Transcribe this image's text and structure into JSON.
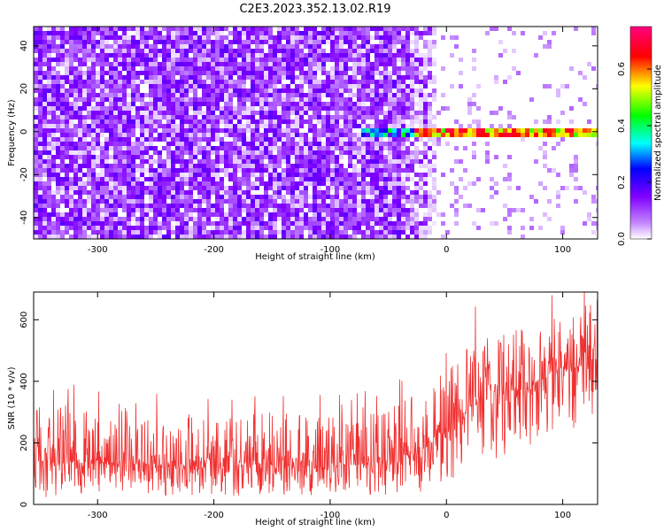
{
  "title": "C2E3.2023.352.13.02.R19",
  "chart_data": [
    {
      "type": "heatmap",
      "title": "C2E3.2023.352.13.02.R19",
      "xlabel": "Height of straight line (km)",
      "ylabel": "Frequency (Hz)",
      "xlim": [
        -355,
        130
      ],
      "ylim": [
        -50,
        49
      ],
      "xticks": [
        -300,
        -200,
        -100,
        0,
        100
      ],
      "yticks": [
        -40,
        -20,
        0,
        20,
        40
      ],
      "colorbar": {
        "label": "Normalized spectral amplitude",
        "range": [
          0.0,
          0.75
        ],
        "ticks": [
          0.0,
          0.2,
          0.4,
          0.6
        ],
        "colormap": [
          "#ffffff",
          "#8000ff",
          "#0000ff",
          "#00ffff",
          "#00ff00",
          "#ffff00",
          "#ff0000",
          "#ff0080"
        ]
      },
      "description_values": {
        "noise_region_x": [
          -355,
          -30
        ],
        "noise_amplitude_range": [
          0.05,
          0.2
        ],
        "sparse_region_x": [
          -30,
          130
        ],
        "sparse_amplitude_range": [
          0.0,
          0.05
        ],
        "signal_band_frequency": [
          -2,
          2
        ],
        "signal_band_x": [
          -75,
          130
        ],
        "signal_band_amplitude_range": [
          0.3,
          0.75
        ]
      },
      "grid": false
    },
    {
      "type": "line",
      "xlabel": "Height of straight line (km)",
      "ylabel": "SNR (10 * v/v)",
      "xlim": [
        -355,
        130
      ],
      "ylim": [
        0,
        690
      ],
      "xticks": [
        -300,
        -200,
        -100,
        0,
        100
      ],
      "yticks": [
        0,
        200,
        400,
        600
      ],
      "color": "#f03030",
      "envelope": {
        "x": [
          -355,
          -300,
          -250,
          -200,
          -150,
          -100,
          -50,
          -20,
          0,
          20,
          50,
          80,
          100,
          130
        ],
        "upper": [
          320,
          330,
          310,
          300,
          300,
          290,
          320,
          400,
          450,
          520,
          560,
          590,
          620,
          680
        ],
        "lower": [
          20,
          30,
          30,
          25,
          30,
          30,
          30,
          40,
          60,
          120,
          160,
          200,
          230,
          260
        ],
        "center": [
          140,
          140,
          130,
          130,
          130,
          125,
          140,
          180,
          250,
          320,
          360,
          400,
          430,
          470
        ]
      },
      "grid": false
    }
  ]
}
